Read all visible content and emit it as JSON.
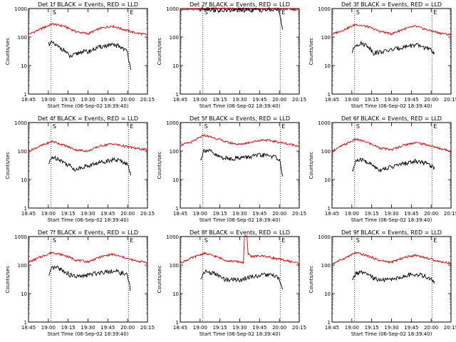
{
  "chart_data": {
    "type": "line",
    "grid": false,
    "y_scale": "log",
    "ylim": [
      1,
      1000
    ],
    "y_ticks": [
      "1",
      "10",
      "100",
      "1000"
    ],
    "ylabel": "Counts/sec",
    "xlabel": "Start Time (06-Sep-02 18:39:40)",
    "x_tick_labels": [
      "18:45",
      "19:00",
      "19:15",
      "19:30",
      "19:45",
      "20:00",
      "20:15"
    ],
    "xlim_minutes": [
      0,
      100
    ],
    "vline_minutes": [
      19,
      84
    ],
    "marker_labels": [
      "S",
      "E"
    ],
    "colors": {
      "events": "#000000",
      "lld": "#dd0000"
    },
    "panels": [
      {
        "title": "Det 1f BLACK = Events, RED = LLD",
        "lld": [
          [
            0,
            125
          ],
          [
            10,
            190
          ],
          [
            20,
            290
          ],
          [
            30,
            240
          ],
          [
            40,
            155
          ],
          [
            50,
            130
          ],
          [
            60,
            200
          ],
          [
            70,
            245
          ],
          [
            80,
            185
          ],
          [
            90,
            140
          ],
          [
            100,
            120
          ]
        ],
        "events": [
          [
            17,
            60
          ],
          [
            20,
            62
          ],
          [
            25,
            45
          ],
          [
            30,
            35
          ],
          [
            35,
            20
          ],
          [
            40,
            25
          ],
          [
            45,
            32
          ],
          [
            50,
            30
          ],
          [
            55,
            38
          ],
          [
            60,
            45
          ],
          [
            65,
            50
          ],
          [
            70,
            52
          ],
          [
            75,
            50
          ],
          [
            80,
            40
          ],
          [
            83,
            30
          ],
          [
            86,
            8
          ]
        ]
      },
      {
        "title": "Det 2f BLACK = Events, RED = LLD",
        "lld": [
          [
            0,
            900
          ],
          [
            10,
            940
          ],
          [
            20,
            1000
          ],
          [
            30,
            1000
          ],
          [
            40,
            980
          ],
          [
            50,
            960
          ],
          [
            60,
            970
          ],
          [
            70,
            980
          ],
          [
            80,
            960
          ],
          [
            90,
            940
          ],
          [
            100,
            930
          ]
        ],
        "events": [
          [
            17,
            900
          ],
          [
            20,
            1050
          ],
          [
            25,
            950
          ],
          [
            30,
            880
          ],
          [
            35,
            820
          ],
          [
            40,
            870
          ],
          [
            45,
            880
          ],
          [
            50,
            890
          ],
          [
            55,
            890
          ],
          [
            60,
            900
          ],
          [
            65,
            905
          ],
          [
            70,
            905
          ],
          [
            75,
            900
          ],
          [
            80,
            900
          ],
          [
            83,
            890
          ],
          [
            86,
            200
          ]
        ]
      },
      {
        "title": "Det 3f BLACK = Events, RED = LLD",
        "lld": [
          [
            0,
            125
          ],
          [
            10,
            180
          ],
          [
            20,
            280
          ],
          [
            30,
            230
          ],
          [
            40,
            160
          ],
          [
            50,
            130
          ],
          [
            60,
            190
          ],
          [
            70,
            240
          ],
          [
            80,
            180
          ],
          [
            90,
            140
          ],
          [
            100,
            120
          ]
        ],
        "events": [
          [
            17,
            30
          ],
          [
            20,
            55
          ],
          [
            25,
            60
          ],
          [
            30,
            50
          ],
          [
            35,
            28
          ],
          [
            40,
            30
          ],
          [
            45,
            32
          ],
          [
            50,
            36
          ],
          [
            55,
            40
          ],
          [
            60,
            45
          ],
          [
            65,
            50
          ],
          [
            70,
            52
          ],
          [
            75,
            48
          ],
          [
            80,
            40
          ],
          [
            83,
            35
          ],
          [
            86,
            28
          ]
        ]
      },
      {
        "title": "Det 4f BLACK = Events, RED = LLD",
        "lld": [
          [
            0,
            100
          ],
          [
            10,
            150
          ],
          [
            20,
            220
          ],
          [
            30,
            160
          ],
          [
            40,
            110
          ],
          [
            50,
            100
          ],
          [
            60,
            150
          ],
          [
            70,
            180
          ],
          [
            80,
            150
          ],
          [
            90,
            125
          ],
          [
            100,
            110
          ]
        ],
        "events": [
          [
            17,
            35
          ],
          [
            20,
            62
          ],
          [
            25,
            55
          ],
          [
            30,
            40
          ],
          [
            35,
            30
          ],
          [
            40,
            22
          ],
          [
            45,
            28
          ],
          [
            50,
            30
          ],
          [
            55,
            35
          ],
          [
            60,
            40
          ],
          [
            65,
            45
          ],
          [
            70,
            50
          ],
          [
            75,
            48
          ],
          [
            80,
            42
          ],
          [
            83,
            35
          ],
          [
            86,
            15
          ]
        ]
      },
      {
        "title": "Det 5f BLACK = Events, RED = LLD",
        "lld": [
          [
            0,
            160
          ],
          [
            10,
            210
          ],
          [
            20,
            360
          ],
          [
            30,
            280
          ],
          [
            40,
            200
          ],
          [
            50,
            170
          ],
          [
            60,
            210
          ],
          [
            70,
            250
          ],
          [
            80,
            215
          ],
          [
            90,
            180
          ],
          [
            100,
            150
          ]
        ],
        "events": [
          [
            17,
            50
          ],
          [
            20,
            110
          ],
          [
            25,
            100
          ],
          [
            30,
            70
          ],
          [
            35,
            60
          ],
          [
            40,
            55
          ],
          [
            45,
            55
          ],
          [
            50,
            60
          ],
          [
            55,
            60
          ],
          [
            60,
            65
          ],
          [
            65,
            70
          ],
          [
            70,
            72
          ],
          [
            75,
            70
          ],
          [
            80,
            60
          ],
          [
            83,
            55
          ],
          [
            86,
            15
          ]
        ]
      },
      {
        "title": "Det 6f BLACK = Events, RED = LLD",
        "lld": [
          [
            0,
            100
          ],
          [
            10,
            165
          ],
          [
            20,
            260
          ],
          [
            30,
            200
          ],
          [
            40,
            130
          ],
          [
            50,
            110
          ],
          [
            60,
            160
          ],
          [
            70,
            200
          ],
          [
            80,
            165
          ],
          [
            90,
            125
          ],
          [
            100,
            100
          ]
        ],
        "events": [
          [
            17,
            18
          ],
          [
            20,
            45
          ],
          [
            25,
            50
          ],
          [
            30,
            40
          ],
          [
            35,
            30
          ],
          [
            40,
            22
          ],
          [
            45,
            25
          ],
          [
            50,
            28
          ],
          [
            55,
            32
          ],
          [
            60,
            36
          ],
          [
            65,
            40
          ],
          [
            70,
            45
          ],
          [
            75,
            42
          ],
          [
            80,
            36
          ],
          [
            83,
            32
          ],
          [
            86,
            25
          ]
        ]
      },
      {
        "title": "Det 7f BLACK = Events, RED = LLD",
        "lld": [
          [
            0,
            125
          ],
          [
            10,
            190
          ],
          [
            20,
            280
          ],
          [
            30,
            220
          ],
          [
            40,
            150
          ],
          [
            50,
            130
          ],
          [
            60,
            190
          ],
          [
            70,
            240
          ],
          [
            80,
            185
          ],
          [
            90,
            140
          ],
          [
            100,
            125
          ]
        ],
        "events": [
          [
            17,
            40
          ],
          [
            20,
            80
          ],
          [
            25,
            80
          ],
          [
            30,
            60
          ],
          [
            35,
            45
          ],
          [
            40,
            40
          ],
          [
            45,
            40
          ],
          [
            50,
            45
          ],
          [
            55,
            50
          ],
          [
            60,
            55
          ],
          [
            65,
            60
          ],
          [
            70,
            62
          ],
          [
            75,
            58
          ],
          [
            80,
            50
          ],
          [
            83,
            45
          ],
          [
            86,
            12
          ]
        ]
      },
      {
        "title": "Det 8f BLACK = Events, RED = LLD",
        "lld": [
          [
            0,
            120
          ],
          [
            10,
            180
          ],
          [
            20,
            260
          ],
          [
            30,
            200
          ],
          [
            40,
            140
          ],
          [
            50,
            130
          ],
          [
            53,
            120
          ],
          [
            54,
            1000
          ],
          [
            56,
            1000
          ],
          [
            57,
            250
          ],
          [
            60,
            200
          ],
          [
            70,
            210
          ],
          [
            80,
            170
          ],
          [
            90,
            140
          ],
          [
            100,
            115
          ]
        ],
        "events": [
          [
            17,
            30
          ],
          [
            20,
            60
          ],
          [
            25,
            55
          ],
          [
            30,
            48
          ],
          [
            35,
            35
          ],
          [
            40,
            30
          ],
          [
            45,
            32
          ],
          [
            50,
            30
          ],
          [
            55,
            35
          ],
          [
            60,
            40
          ],
          [
            65,
            42
          ],
          [
            70,
            45
          ],
          [
            75,
            45
          ],
          [
            80,
            40
          ],
          [
            83,
            35
          ],
          [
            86,
            12
          ]
        ]
      },
      {
        "title": "Det 9f BLACK = Events, RED = LLD",
        "lld": [
          [
            0,
            110
          ],
          [
            10,
            170
          ],
          [
            20,
            270
          ],
          [
            30,
            210
          ],
          [
            40,
            145
          ],
          [
            50,
            125
          ],
          [
            60,
            180
          ],
          [
            70,
            225
          ],
          [
            80,
            175
          ],
          [
            90,
            135
          ],
          [
            100,
            115
          ]
        ],
        "events": [
          [
            17,
            28
          ],
          [
            20,
            52
          ],
          [
            25,
            55
          ],
          [
            30,
            45
          ],
          [
            35,
            35
          ],
          [
            40,
            30
          ],
          [
            45,
            30
          ],
          [
            50,
            32
          ],
          [
            55,
            35
          ],
          [
            60,
            40
          ],
          [
            65,
            45
          ],
          [
            70,
            48
          ],
          [
            75,
            45
          ],
          [
            80,
            38
          ],
          [
            83,
            32
          ],
          [
            86,
            25
          ]
        ]
      }
    ]
  }
}
